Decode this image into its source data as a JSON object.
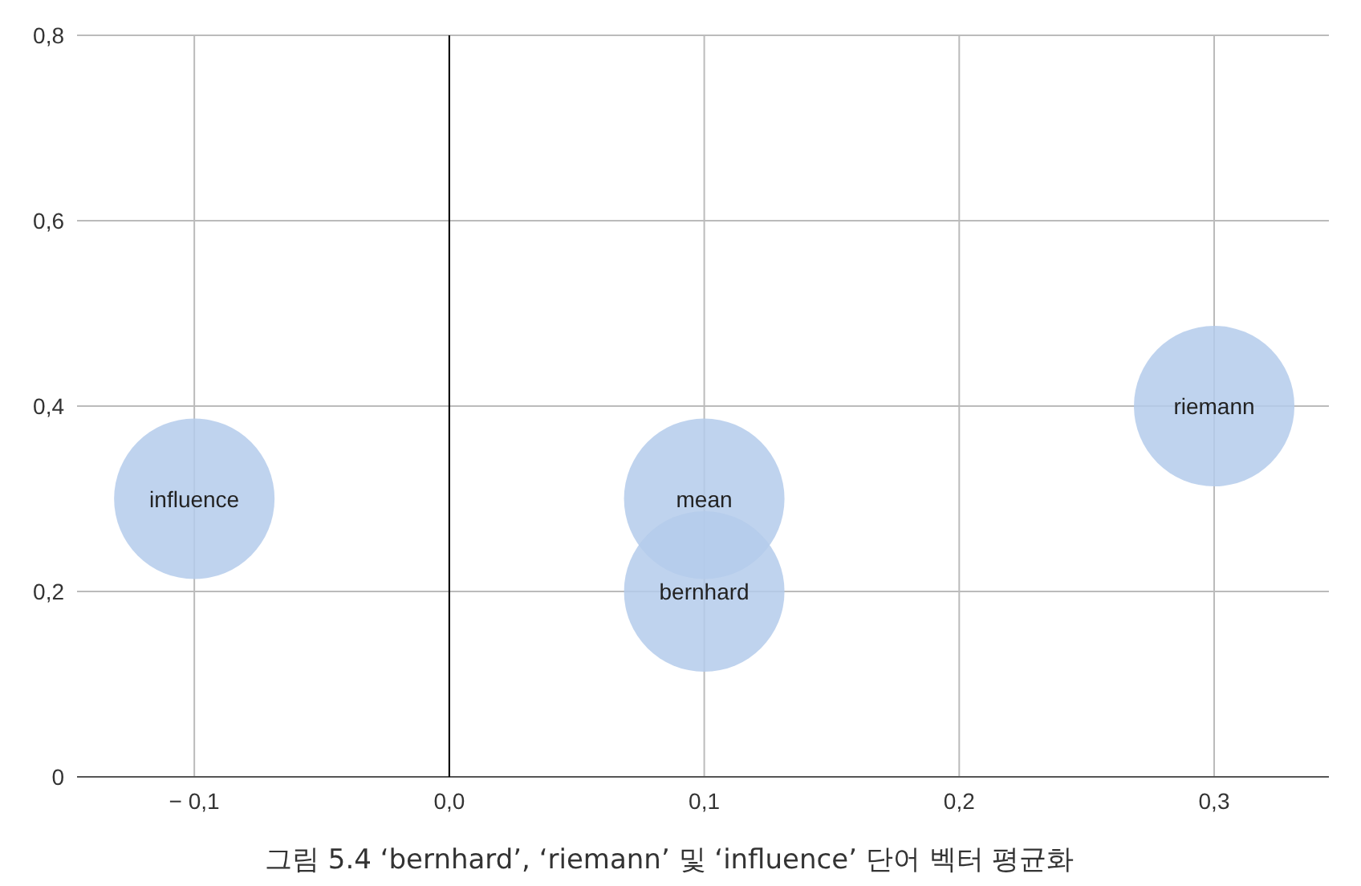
{
  "chart_data": {
    "type": "bubble",
    "series": [
      {
        "name": "influence",
        "color": "#b4cbeb",
        "x": [
          -0.1
        ],
        "values": [
          0.3
        ],
        "sizes": [
          1
        ]
      },
      {
        "name": "mean",
        "color": "#b4cbeb",
        "x": [
          0.1
        ],
        "values": [
          0.3
        ],
        "sizes": [
          1
        ]
      },
      {
        "name": "bernhard",
        "color": "#b4cbeb",
        "x": [
          0.1
        ],
        "values": [
          0.2
        ],
        "sizes": [
          1
        ]
      },
      {
        "name": "riemann",
        "color": "#b4cbeb",
        "x": [
          0.3
        ],
        "values": [
          0.4
        ],
        "sizes": [
          1
        ]
      }
    ],
    "xlim": [
      -0.146,
      0.345
    ],
    "xticks": [
      {
        "value": -0.1,
        "label": "− 0,1"
      },
      {
        "value": 0,
        "label": "0,0"
      },
      {
        "value": 0.1,
        "label": "0,1"
      },
      {
        "value": 0.2,
        "label": "0,2"
      },
      {
        "value": 0.3,
        "label": "0,3"
      }
    ],
    "ylim": [
      0,
      0.8
    ],
    "yticks": [
      {
        "value": 0,
        "label": "0"
      },
      {
        "value": 0.2,
        "label": "0,2"
      },
      {
        "value": 0.4,
        "label": "0,4"
      },
      {
        "value": 0.6,
        "label": "0,6"
      },
      {
        "value": 0.8,
        "label": "0,8"
      }
    ],
    "ref_lines": [
      {
        "axis": "x",
        "value": 0,
        "color": "#000000"
      }
    ],
    "grid": true,
    "annotations": [
      "그림 5.4   ‘bernhard’, ‘riemann’ 및 ‘influence’ 단어 벡터 평균화"
    ]
  }
}
